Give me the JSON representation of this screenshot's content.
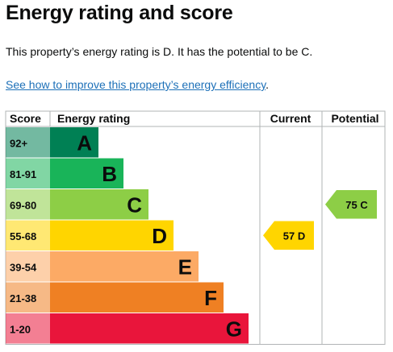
{
  "page": {
    "title": "Energy rating and score",
    "intro": "This property’s energy rating is D. It has the potential to be C.",
    "link_text": "See how to improve this property’s energy efficiency",
    "link_suffix": "."
  },
  "chart_data": {
    "type": "bar",
    "columns": {
      "score": "Score",
      "rating": "Energy rating",
      "current": "Current",
      "potential": "Potential"
    },
    "bands": [
      {
        "score_range": "92+",
        "letter": "A",
        "color": "#008054",
        "text_color": "#0b0c0c"
      },
      {
        "score_range": "81-91",
        "letter": "B",
        "color": "#19b459",
        "text_color": "#0b0c0c"
      },
      {
        "score_range": "69-80",
        "letter": "C",
        "color": "#8dce46",
        "text_color": "#0b0c0c"
      },
      {
        "score_range": "55-68",
        "letter": "D",
        "color": "#ffd500",
        "text_color": "#0b0c0c"
      },
      {
        "score_range": "39-54",
        "letter": "E",
        "color": "#fcaa65",
        "text_color": "#0b0c0c"
      },
      {
        "score_range": "21-38",
        "letter": "F",
        "color": "#ef8023",
        "text_color": "#0b0c0c"
      },
      {
        "score_range": "1-20",
        "letter": "G",
        "color": "#e9153b",
        "text_color": "#0b0c0c"
      }
    ],
    "current": {
      "score": 57,
      "letter": "D",
      "label": "57 D",
      "color": "#ffd500"
    },
    "potential": {
      "score": 75,
      "letter": "C",
      "label": "75 C",
      "color": "#8dce46"
    }
  }
}
